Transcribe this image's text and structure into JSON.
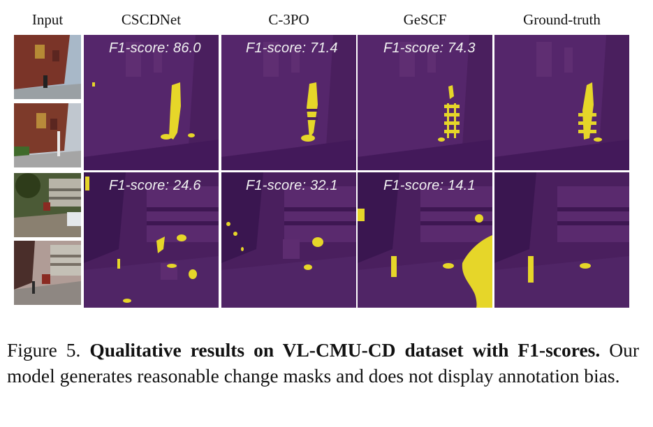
{
  "columns": {
    "input": "Input",
    "cscdnet": "CSCDNet",
    "c3po": "C-3PO",
    "gescf": "GeSCF",
    "ground_truth": "Ground-truth"
  },
  "scores": {
    "row1": {
      "cscdnet": "F1-score: 86.0",
      "c3po": "F1-score: 71.4",
      "gescf": "F1-score: 74.3"
    },
    "row2": {
      "cscdnet": "F1-score: 24.6",
      "c3po": "F1-score: 32.1",
      "gescf": "F1-score: 14.1"
    }
  },
  "caption": {
    "figure_label": "Figure 5.",
    "bold_text": "Qualitative results on VL-CMU-CD dataset with F1-scores.",
    "body_text": "Our model generates reasonable change masks and does not display annotation bias."
  },
  "colors": {
    "mask_background": "#4a1f5e",
    "mask_change": "#e6d629"
  }
}
